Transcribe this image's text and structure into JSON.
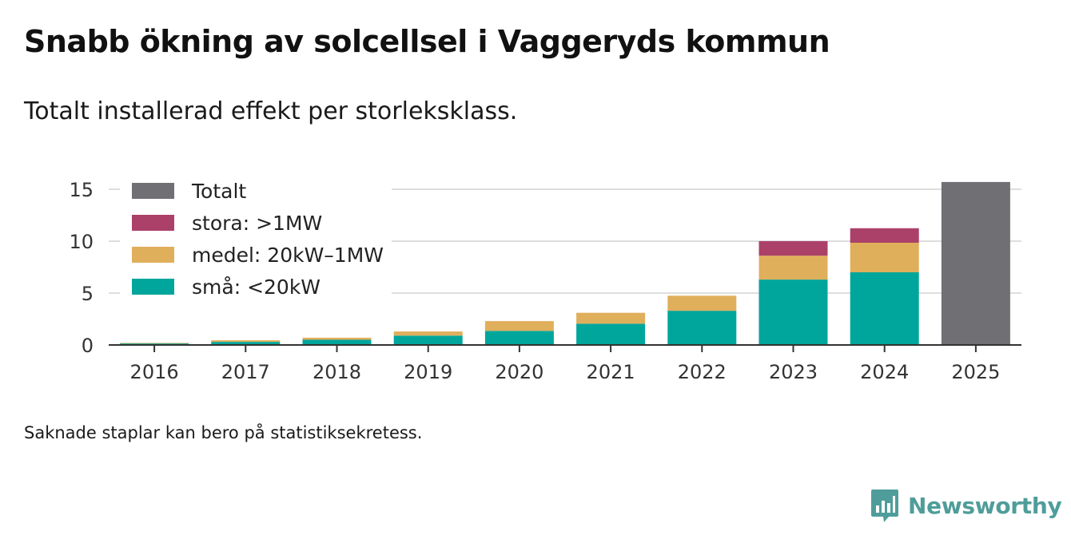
{
  "header": {
    "title": "Snabb ökning av solcellsel i Vaggeryds kommun",
    "subtitle": "Totalt installerad effekt per storleksklass."
  },
  "footnote": "Saknade staplar kan bero på statistiksekretess.",
  "brand": {
    "name": "Newsworthy",
    "icon": "newsworthy-logo-icon",
    "color": "#4f9d9a"
  },
  "chart_data": {
    "type": "bar",
    "stacked": true,
    "title": "Snabb ökning av solcellsel i Vaggeryds kommun",
    "subtitle": "Totalt installerad effekt per storleksklass.",
    "xlabel": "",
    "ylabel": "",
    "categories": [
      "2016",
      "2017",
      "2018",
      "2019",
      "2020",
      "2021",
      "2022",
      "2023",
      "2024",
      "2025"
    ],
    "yticks": [
      0,
      5,
      10,
      15
    ],
    "ylim": [
      0,
      16
    ],
    "grid": true,
    "legend_position": "top-left",
    "series": [
      {
        "name": "små: <20kW",
        "color": "#00a69c",
        "values": [
          0.15,
          0.3,
          0.5,
          0.9,
          1.35,
          2.05,
          3.3,
          6.3,
          7.0,
          null
        ]
      },
      {
        "name": "medel: 20kW–1MW",
        "color": "#e0af5c",
        "values": [
          0.05,
          0.15,
          0.2,
          0.4,
          0.95,
          1.05,
          1.45,
          2.3,
          2.85,
          null
        ]
      },
      {
        "name": "stora: >1MW",
        "color": "#ab4169",
        "values": [
          null,
          null,
          null,
          null,
          null,
          null,
          null,
          1.4,
          1.4,
          null
        ]
      },
      {
        "name": "Totalt",
        "color": "#706f74",
        "values": [
          null,
          null,
          null,
          null,
          null,
          null,
          null,
          null,
          null,
          15.7
        ]
      }
    ],
    "legend": [
      "Totalt",
      "stora: >1MW",
      "medel: 20kW–1MW",
      "små: <20kW"
    ]
  }
}
